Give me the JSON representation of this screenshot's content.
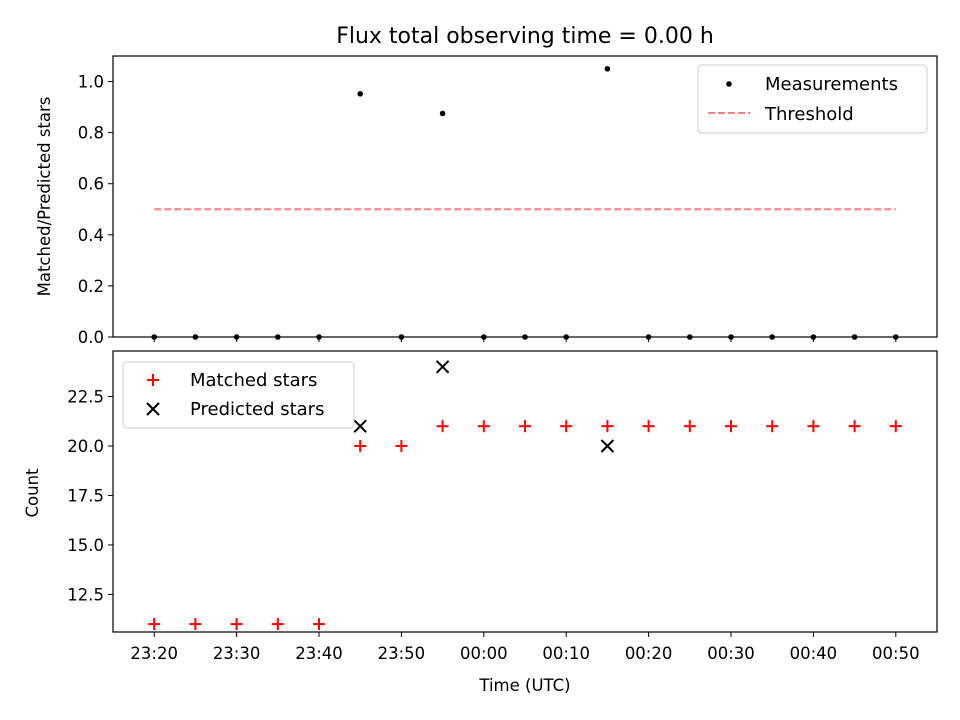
{
  "chart_data": [
    {
      "type": "scatter",
      "title": "Flux total observing time = 0.00 h",
      "ylabel": "Matched/Predicted stars",
      "xlabel": "",
      "ylim": [
        0,
        1.1
      ],
      "xlim": [
        "23:15",
        "00:55"
      ],
      "yticks": [
        0.0,
        0.2,
        0.4,
        0.6,
        0.8,
        1.0
      ],
      "ytick_labels": [
        "0.0",
        "0.2",
        "0.4",
        "0.6",
        "0.8",
        "1.0"
      ],
      "legend_position": "top-right",
      "series": [
        {
          "name": "Measurements",
          "kind": "points",
          "color": "#000000",
          "x": [
            "23:20",
            "23:25",
            "23:30",
            "23:35",
            "23:40",
            "23:45",
            "23:50",
            "23:55",
            "00:00",
            "00:05",
            "00:10",
            "00:15",
            "00:20",
            "00:25",
            "00:30",
            "00:35",
            "00:40",
            "00:45",
            "00:50"
          ],
          "y": [
            0,
            0,
            0,
            0,
            0,
            0.952,
            0,
            0.875,
            0,
            0,
            0,
            1.05,
            0,
            0,
            0,
            0,
            0,
            0,
            0
          ]
        },
        {
          "name": "Threshold",
          "kind": "dashed-line",
          "color": "#ff8080",
          "x": [
            "23:20",
            "00:50"
          ],
          "y": [
            0.5,
            0.5
          ]
        }
      ]
    },
    {
      "type": "scatter",
      "title": "",
      "xlabel": "Time (UTC)",
      "ylabel": "Count",
      "ylim": [
        10.6,
        24.8
      ],
      "xlim": [
        "23:15",
        "00:55"
      ],
      "yticks": [
        12.5,
        15.0,
        17.5,
        20.0,
        22.5
      ],
      "ytick_labels": [
        "12.5",
        "15.0",
        "17.5",
        "20.0",
        "22.5"
      ],
      "xticks": [
        "23:20",
        "23:30",
        "23:40",
        "23:50",
        "00:00",
        "00:10",
        "00:20",
        "00:30",
        "00:40",
        "00:50"
      ],
      "legend_position": "top-left",
      "series": [
        {
          "name": "Matched stars",
          "marker": "plus",
          "color": "#ff0000",
          "x": [
            "23:20",
            "23:25",
            "23:30",
            "23:35",
            "23:40",
            "23:45",
            "23:50",
            "23:55",
            "00:00",
            "00:05",
            "00:10",
            "00:15",
            "00:20",
            "00:25",
            "00:30",
            "00:35",
            "00:40",
            "00:45",
            "00:50"
          ],
          "y": [
            11,
            11,
            11,
            11,
            11,
            20,
            20,
            21,
            21,
            21,
            21,
            21,
            21,
            21,
            21,
            21,
            21,
            21,
            21
          ]
        },
        {
          "name": "Predicted stars",
          "marker": "cross",
          "color": "#000000",
          "x": [
            "23:45",
            "23:55",
            "00:15"
          ],
          "y": [
            21,
            24,
            20
          ]
        }
      ]
    }
  ]
}
